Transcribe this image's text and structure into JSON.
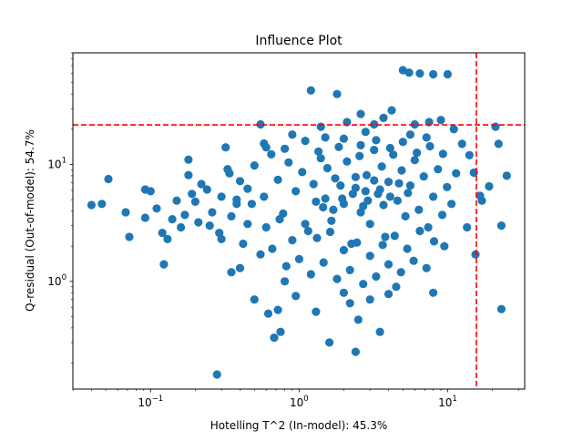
{
  "chart_data": {
    "type": "scatter",
    "title": "Influence Plot",
    "xlabel": "Hotelling T^2 (In-model): 45.3%",
    "ylabel": "Q-residual (Out-of-model): 54.7%",
    "xscale": "log",
    "yscale": "log",
    "xlim": [
      0.03,
      33
    ],
    "ylim": [
      0.12,
      90
    ],
    "grid": false,
    "legend": "none",
    "x_ticks": [
      {
        "value": 0.1,
        "base": "10",
        "exp": "−1"
      },
      {
        "value": 1,
        "base": "10",
        "exp": "0"
      },
      {
        "value": 10,
        "base": "10",
        "exp": "1"
      }
    ],
    "y_ticks": [
      {
        "value": 1,
        "base": "10",
        "exp": "0"
      },
      {
        "value": 10,
        "base": "10",
        "exp": "1"
      }
    ],
    "limits": {
      "x_threshold": 15.6,
      "y_threshold": 21.8,
      "color": "#ff0000",
      "style": "dashed"
    },
    "series": [
      {
        "color": "#1f77b4",
        "points": [
          [
            0.28,
            0.16
          ],
          [
            0.04,
            4.5
          ],
          [
            0.047,
            4.6
          ],
          [
            0.052,
            7.5
          ],
          [
            0.068,
            3.9
          ],
          [
            0.072,
            2.4
          ],
          [
            0.092,
            6.1
          ],
          [
            0.1,
            5.9
          ],
          [
            0.092,
            3.5
          ],
          [
            0.11,
            4.2
          ],
          [
            0.12,
            2.6
          ],
          [
            0.123,
            1.4
          ],
          [
            0.13,
            2.3
          ],
          [
            0.14,
            3.4
          ],
          [
            0.15,
            4.9
          ],
          [
            0.16,
            2.9
          ],
          [
            0.17,
            3.7
          ],
          [
            0.18,
            11
          ],
          [
            0.18,
            8.1
          ],
          [
            0.2,
            4.8
          ],
          [
            0.22,
            6.8
          ],
          [
            0.25,
            3.0
          ],
          [
            0.3,
            2.3
          ],
          [
            0.32,
            14
          ],
          [
            0.33,
            9.1
          ],
          [
            0.35,
            1.2
          ],
          [
            0.38,
            4.6
          ],
          [
            0.4,
            1.3
          ],
          [
            0.45,
            3.1
          ],
          [
            0.5,
            0.7
          ],
          [
            0.55,
            22
          ],
          [
            0.6,
            14
          ],
          [
            0.62,
            0.53
          ],
          [
            0.68,
            0.33
          ],
          [
            0.72,
            0.57
          ],
          [
            0.75,
            0.37
          ],
          [
            0.8,
            1.0
          ],
          [
            0.95,
            0.75
          ],
          [
            1.2,
            43
          ],
          [
            1.3,
            0.55
          ],
          [
            1.6,
            0.3
          ],
          [
            1.8,
            40
          ],
          [
            2.0,
            0.8
          ],
          [
            2.2,
            0.65
          ],
          [
            2.4,
            0.25
          ],
          [
            2.5,
            0.47
          ],
          [
            3.0,
            0.7
          ],
          [
            3.5,
            0.37
          ],
          [
            4.0,
            0.78
          ],
          [
            4.5,
            0.9
          ],
          [
            5.0,
            64
          ],
          [
            5.5,
            61
          ],
          [
            6.5,
            60
          ],
          [
            8.0,
            59
          ],
          [
            10.0,
            59
          ],
          [
            6.0,
            22
          ],
          [
            7.5,
            23
          ],
          [
            9.0,
            24
          ],
          [
            8.0,
            0.8
          ],
          [
            9.5,
            2.0
          ],
          [
            13.5,
            2.9
          ],
          [
            15.4,
            1.7
          ],
          [
            14.0,
            12
          ],
          [
            15.0,
            8.5
          ],
          [
            17.0,
            4.9
          ],
          [
            21.0,
            21
          ],
          [
            22.0,
            15
          ],
          [
            23.0,
            0.58
          ],
          [
            23.0,
            3.0
          ],
          [
            25.0,
            8.0
          ],
          [
            19.0,
            6.5
          ],
          [
            16.5,
            5.4
          ],
          [
            12.5,
            15
          ],
          [
            4.2,
            29
          ],
          [
            3.7,
            25
          ],
          [
            2.6,
            27
          ],
          [
            2.1,
            23
          ],
          [
            1.4,
            21
          ],
          [
            3.2,
            22
          ],
          [
            11.0,
            20
          ],
          [
            0.9,
            18
          ],
          [
            1.5,
            17
          ],
          [
            2.8,
            19
          ],
          [
            5.6,
            18
          ],
          [
            7.2,
            17
          ],
          [
            0.45,
            6.2
          ],
          [
            0.5,
            9.8
          ],
          [
            0.58,
            5.3
          ],
          [
            0.65,
            12.2
          ],
          [
            0.72,
            7.4
          ],
          [
            0.78,
            3.8
          ],
          [
            0.85,
            10.4
          ],
          [
            0.95,
            5.9
          ],
          [
            1.05,
            8.6
          ],
          [
            1.15,
            2.7
          ],
          [
            1.25,
            6.8
          ],
          [
            1.35,
            12.9
          ],
          [
            1.45,
            4.3
          ],
          [
            1.55,
            9.3
          ],
          [
            1.65,
            3.3
          ],
          [
            1.75,
            7.6
          ],
          [
            1.85,
            14.1
          ],
          [
            1.95,
            5.1
          ],
          [
            2.1,
            10.6
          ],
          [
            2.25,
            2.1
          ],
          [
            2.4,
            6.3
          ],
          [
            2.55,
            11.8
          ],
          [
            2.7,
            4.4
          ],
          [
            2.85,
            8.1
          ],
          [
            3.0,
            3.1
          ],
          [
            3.2,
            13.3
          ],
          [
            3.4,
            5.6
          ],
          [
            3.6,
            9.6
          ],
          [
            3.8,
            2.4
          ],
          [
            4.0,
            7.1
          ],
          [
            4.3,
            12.1
          ],
          [
            4.6,
            4.9
          ],
          [
            4.9,
            8.9
          ],
          [
            5.2,
            3.6
          ],
          [
            5.6,
            6.6
          ],
          [
            6.0,
            10.9
          ],
          [
            6.4,
            4.1
          ],
          [
            6.9,
            7.9
          ],
          [
            7.4,
            2.9
          ],
          [
            8.0,
            5.3
          ],
          [
            8.6,
            9.1
          ],
          [
            9.2,
            3.7
          ],
          [
            9.9,
            6.4
          ],
          [
            10.6,
            4.6
          ],
          [
            11.4,
            8.4
          ],
          [
            0.35,
            3.6
          ],
          [
            0.4,
            7.2
          ],
          [
            0.42,
            2.1
          ],
          [
            0.48,
            4.6
          ],
          [
            0.55,
            1.7
          ],
          [
            0.6,
            2.9
          ],
          [
            0.66,
            1.9
          ],
          [
            0.74,
            3.4
          ],
          [
            0.82,
            1.35
          ],
          [
            0.9,
            2.25
          ],
          [
            1.0,
            1.55
          ],
          [
            1.1,
            3.1
          ],
          [
            1.2,
            1.15
          ],
          [
            1.32,
            2.35
          ],
          [
            1.46,
            1.45
          ],
          [
            1.62,
            2.65
          ],
          [
            1.8,
            1.05
          ],
          [
            2.0,
            1.85
          ],
          [
            2.2,
            1.25
          ],
          [
            2.45,
            2.15
          ],
          [
            2.7,
            0.95
          ],
          [
            3.0,
            1.65
          ],
          [
            3.3,
            1.1
          ],
          [
            3.65,
            2.05
          ],
          [
            4.0,
            1.4
          ],
          [
            4.4,
            2.45
          ],
          [
            4.85,
            1.2
          ],
          [
            5.35,
            1.9
          ],
          [
            5.9,
            1.5
          ],
          [
            6.5,
            2.7
          ],
          [
            7.2,
            1.3
          ],
          [
            8.1,
            2.2
          ],
          [
            0.3,
            5.3
          ],
          [
            0.26,
            3.9
          ],
          [
            0.24,
            6.1
          ],
          [
            0.34,
            8.4
          ],
          [
            0.38,
            5.0
          ],
          [
            0.29,
            2.6
          ],
          [
            0.21,
            3.2
          ],
          [
            0.19,
            5.6
          ],
          [
            0.58,
            15.1
          ],
          [
            0.8,
            13.6
          ],
          [
            1.1,
            15.9
          ],
          [
            1.4,
            11.3
          ],
          [
            2.0,
            16.6
          ],
          [
            2.6,
            14.6
          ],
          [
            3.3,
            16.1
          ],
          [
            4.1,
            13.8
          ],
          [
            5.0,
            15.6
          ],
          [
            6.2,
            12.6
          ],
          [
            7.6,
            14.3
          ],
          [
            9.3,
            12.3
          ],
          [
            1.7,
            4.1
          ],
          [
            2.3,
            5.6
          ],
          [
            2.9,
            4.9
          ],
          [
            3.5,
            6.1
          ],
          [
            4.1,
            5.3
          ],
          [
            1.9,
            6.6
          ],
          [
            2.6,
            3.9
          ],
          [
            3.2,
            7.3
          ],
          [
            1.5,
            5.1
          ],
          [
            2.0,
            4.6
          ],
          [
            4.7,
            6.9
          ],
          [
            5.4,
            5.7
          ],
          [
            1.3,
            4.8
          ],
          [
            2.8,
            5.9
          ],
          [
            3.7,
            4.5
          ],
          [
            2.4,
            7.8
          ]
        ]
      }
    ]
  }
}
